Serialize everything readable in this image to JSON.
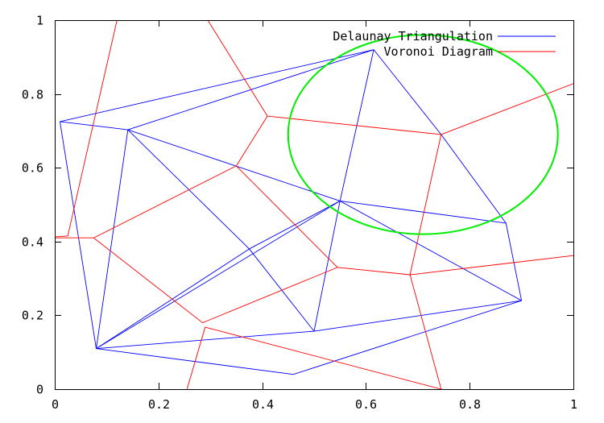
{
  "chart_data": {
    "type": "line",
    "title": "",
    "xlabel": "",
    "ylabel": "",
    "xlim": [
      0,
      1
    ],
    "ylim": [
      0,
      1
    ],
    "grid": false,
    "legend_position": "top-right",
    "x_ticks": [
      {
        "value": 0,
        "label": "0"
      },
      {
        "value": 0.2,
        "label": "0.2"
      },
      {
        "value": 0.4,
        "label": "0.4"
      },
      {
        "value": 0.6,
        "label": "0.6"
      },
      {
        "value": 0.8,
        "label": "0.8"
      },
      {
        "value": 1,
        "label": "1"
      }
    ],
    "y_ticks": [
      {
        "value": 0,
        "label": "0"
      },
      {
        "value": 0.2,
        "label": "0.2"
      },
      {
        "value": 0.4,
        "label": "0.4"
      },
      {
        "value": 0.6,
        "label": "0.6"
      },
      {
        "value": 0.8,
        "label": "0.8"
      },
      {
        "value": 1,
        "label": "1"
      }
    ],
    "series": [
      {
        "name": "Delaunay Triangulation",
        "color": "#0000ff",
        "kind": "segments",
        "points": [
          [
            0.01,
            0.725
          ],
          [
            0.141,
            0.703
          ],
          [
            0.615,
            0.92
          ],
          [
            0.08,
            0.11
          ],
          [
            0.375,
            0.38
          ],
          [
            0.55,
            0.51
          ],
          [
            0.5,
            0.157
          ],
          [
            0.87,
            0.45
          ],
          [
            0.9,
            0.24
          ],
          [
            0.46,
            0.04
          ],
          [
            0.745,
            0.69
          ]
        ],
        "edges": [
          [
            0,
            2
          ],
          [
            0,
            1
          ],
          [
            0,
            3
          ],
          [
            1,
            2
          ],
          [
            1,
            3
          ],
          [
            1,
            4
          ],
          [
            1,
            5
          ],
          [
            4,
            5
          ],
          [
            4,
            3
          ],
          [
            4,
            6
          ],
          [
            3,
            6
          ],
          [
            3,
            9
          ],
          [
            3,
            5
          ],
          [
            5,
            2
          ],
          [
            5,
            6
          ],
          [
            5,
            7
          ],
          [
            5,
            8
          ],
          [
            2,
            10
          ],
          [
            10,
            7
          ],
          [
            7,
            8
          ],
          [
            6,
            8
          ],
          [
            9,
            8
          ]
        ]
      },
      {
        "name": "Voronoi Diagram",
        "color": "#ff0000",
        "kind": "segments",
        "points": [
          [
            0.41,
            0.74
          ],
          [
            0.745,
            0.69
          ],
          [
            0.35,
            0.605
          ],
          [
            0.075,
            0.41
          ],
          [
            0.025,
            0.415
          ],
          [
            0.545,
            0.33
          ],
          [
            0.685,
            0.31
          ],
          [
            0.285,
            0.18
          ],
          [
            0.29,
            0.168
          ],
          [
            0.12,
            1.0
          ],
          [
            0.295,
            1.0
          ],
          [
            1.0,
            0.828
          ],
          [
            -0.01,
            0.412
          ],
          [
            0.255,
            0.0
          ],
          [
            1.0,
            0.362
          ],
          [
            0.745,
            0.0
          ],
          [
            0.0,
            0.41
          ]
        ],
        "edges": [
          [
            10,
            0
          ],
          [
            0,
            1
          ],
          [
            0,
            2
          ],
          [
            1,
            11
          ],
          [
            1,
            6
          ],
          [
            2,
            3
          ],
          [
            2,
            5
          ],
          [
            9,
            4
          ],
          [
            4,
            12
          ],
          [
            3,
            16
          ],
          [
            3,
            7
          ],
          [
            7,
            5
          ],
          [
            5,
            6
          ],
          [
            6,
            14
          ],
          [
            6,
            15
          ],
          [
            8,
            13
          ],
          [
            8,
            15
          ]
        ]
      }
    ],
    "annotations": [
      {
        "type": "circle",
        "name": "Circumcircle",
        "color": "#00ee00",
        "center": [
          0.71,
          0.69
        ],
        "radius_x": 0.26,
        "radius_y": 0.27
      }
    ]
  }
}
